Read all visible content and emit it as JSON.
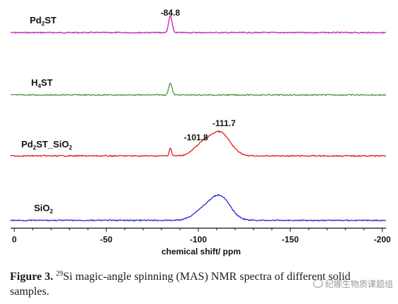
{
  "chart_data": {
    "type": "line",
    "xlabel": "chemical shift/ ppm",
    "xlim": [
      2,
      -202
    ],
    "xticks": [
      0,
      -50,
      -100,
      -150,
      -200
    ],
    "xtick_labels": [
      "0",
      "-50",
      "-100",
      "-150",
      "-200"
    ],
    "ylabel": "",
    "grid": false,
    "legend": "none",
    "series": [
      {
        "name": "Pd2ST",
        "label_main": "Pd",
        "label_sub": "2",
        "label_tail": "ST",
        "color": "#c020c0",
        "peaks": [
          {
            "x": -84.8,
            "height": 1.0,
            "width": 0.9
          }
        ],
        "peak_labels": [
          "-84.8"
        ]
      },
      {
        "name": "H4ST",
        "label_main": "H",
        "label_sub": "4",
        "label_tail": "ST",
        "color": "#4c9a3c",
        "peaks": [
          {
            "x": -84.8,
            "height": 0.85,
            "width": 0.9
          }
        ],
        "peak_labels": []
      },
      {
        "name": "Pd2ST_SiO2",
        "label_main": "Pd",
        "label_sub": "2",
        "label_tail": "ST_SiO",
        "label_sub2": "2",
        "color": "#e02020",
        "peaks": [
          {
            "x": -84.8,
            "height": 0.35,
            "width": 0.6
          },
          {
            "x": -101.8,
            "height": 0.42,
            "width": 4.5
          },
          {
            "x": -111.7,
            "height": 1.0,
            "width": 5.5
          }
        ],
        "peak_labels": [
          "-101.8",
          "-111.7"
        ]
      },
      {
        "name": "SiO2",
        "label_main": "SiO",
        "label_sub": "2",
        "label_tail": "",
        "color": "#2828d8",
        "peaks": [
          {
            "x": -101.8,
            "height": 0.35,
            "width": 5.0
          },
          {
            "x": -111.7,
            "height": 1.0,
            "width": 5.5
          }
        ],
        "peak_labels": []
      }
    ]
  },
  "caption": {
    "prefix": "Figure 3.",
    "isotope_sup": "29",
    "text": "Si magic-angle spinning (MAS) NMR spectra of different solid samples."
  },
  "watermark": "纪娜生物质课题组"
}
